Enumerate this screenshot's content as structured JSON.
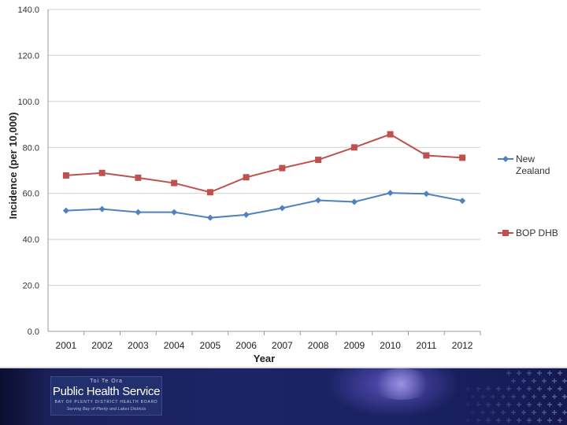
{
  "chart_data": {
    "type": "line",
    "title": "",
    "xlabel": "Year",
    "ylabel": "Incidence (per 10,000)",
    "ylim": [
      0,
      140
    ],
    "ytick_step": 20,
    "ytick_labels": [
      "0.0",
      "20.0",
      "40.0",
      "60.0",
      "80.0",
      "100.0",
      "120.0",
      "140.0"
    ],
    "categories": [
      "2001",
      "2002",
      "2003",
      "2004",
      "2005",
      "2006",
      "2007",
      "2008",
      "2009",
      "2010",
      "2011",
      "2012"
    ],
    "series": [
      {
        "name": "New Zealand",
        "legend_lines": [
          "New",
          "Zealand"
        ],
        "color": "#4f81bd",
        "marker": "diamond",
        "values": [
          52.5,
          53.2,
          51.8,
          51.8,
          49.4,
          50.7,
          53.6,
          57.0,
          56.3,
          60.2,
          59.8,
          56.8
        ]
      },
      {
        "name": "BOP DHB",
        "legend_lines": [
          "BOP DHB"
        ],
        "color": "#c0504d",
        "marker": "square",
        "values": [
          67.8,
          68.9,
          66.8,
          64.5,
          60.5,
          67.0,
          71.0,
          74.6,
          80.0,
          85.7,
          76.5,
          75.5
        ]
      }
    ],
    "grid": true,
    "legend_position": "right"
  },
  "footer": {
    "logo_top": "Toi Te Ora",
    "logo_main": "Public Health Service",
    "logo_sub": "BAY OF PLENTY DISTRICT HEALTH BOARD",
    "logo_tag": "Serving Bay of Plenty and Lakes Districts"
  }
}
